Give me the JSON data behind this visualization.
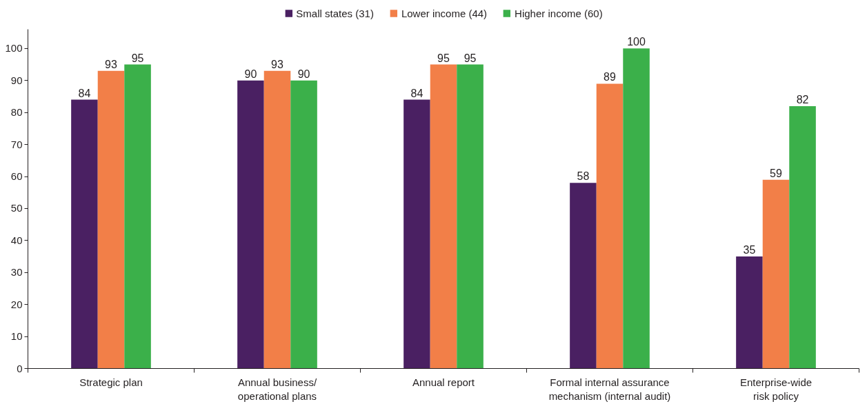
{
  "chart_data": {
    "type": "bar",
    "categories": [
      "Strategic plan",
      "Annual business/\noperational plans",
      "Annual report",
      "Formal internal assurance\nmechanism (internal audit)",
      "Enterprise-wide\nrisk policy"
    ],
    "series": [
      {
        "name": "Small states (31)",
        "color": "#4a2062",
        "values": [
          84,
          90,
          84,
          58,
          35
        ]
      },
      {
        "name": "Lower income (44)",
        "color": "#f27f48",
        "values": [
          93,
          93,
          95,
          89,
          59
        ]
      },
      {
        "name": "Higher income (60)",
        "color": "#3bb04a",
        "values": [
          95,
          90,
          95,
          100,
          82
        ]
      }
    ],
    "ylim": [
      0,
      106
    ],
    "yticks": [
      0,
      10,
      20,
      30,
      40,
      50,
      60,
      70,
      80,
      90,
      100
    ],
    "grid": false,
    "legend": "top",
    "data_labels": true
  }
}
